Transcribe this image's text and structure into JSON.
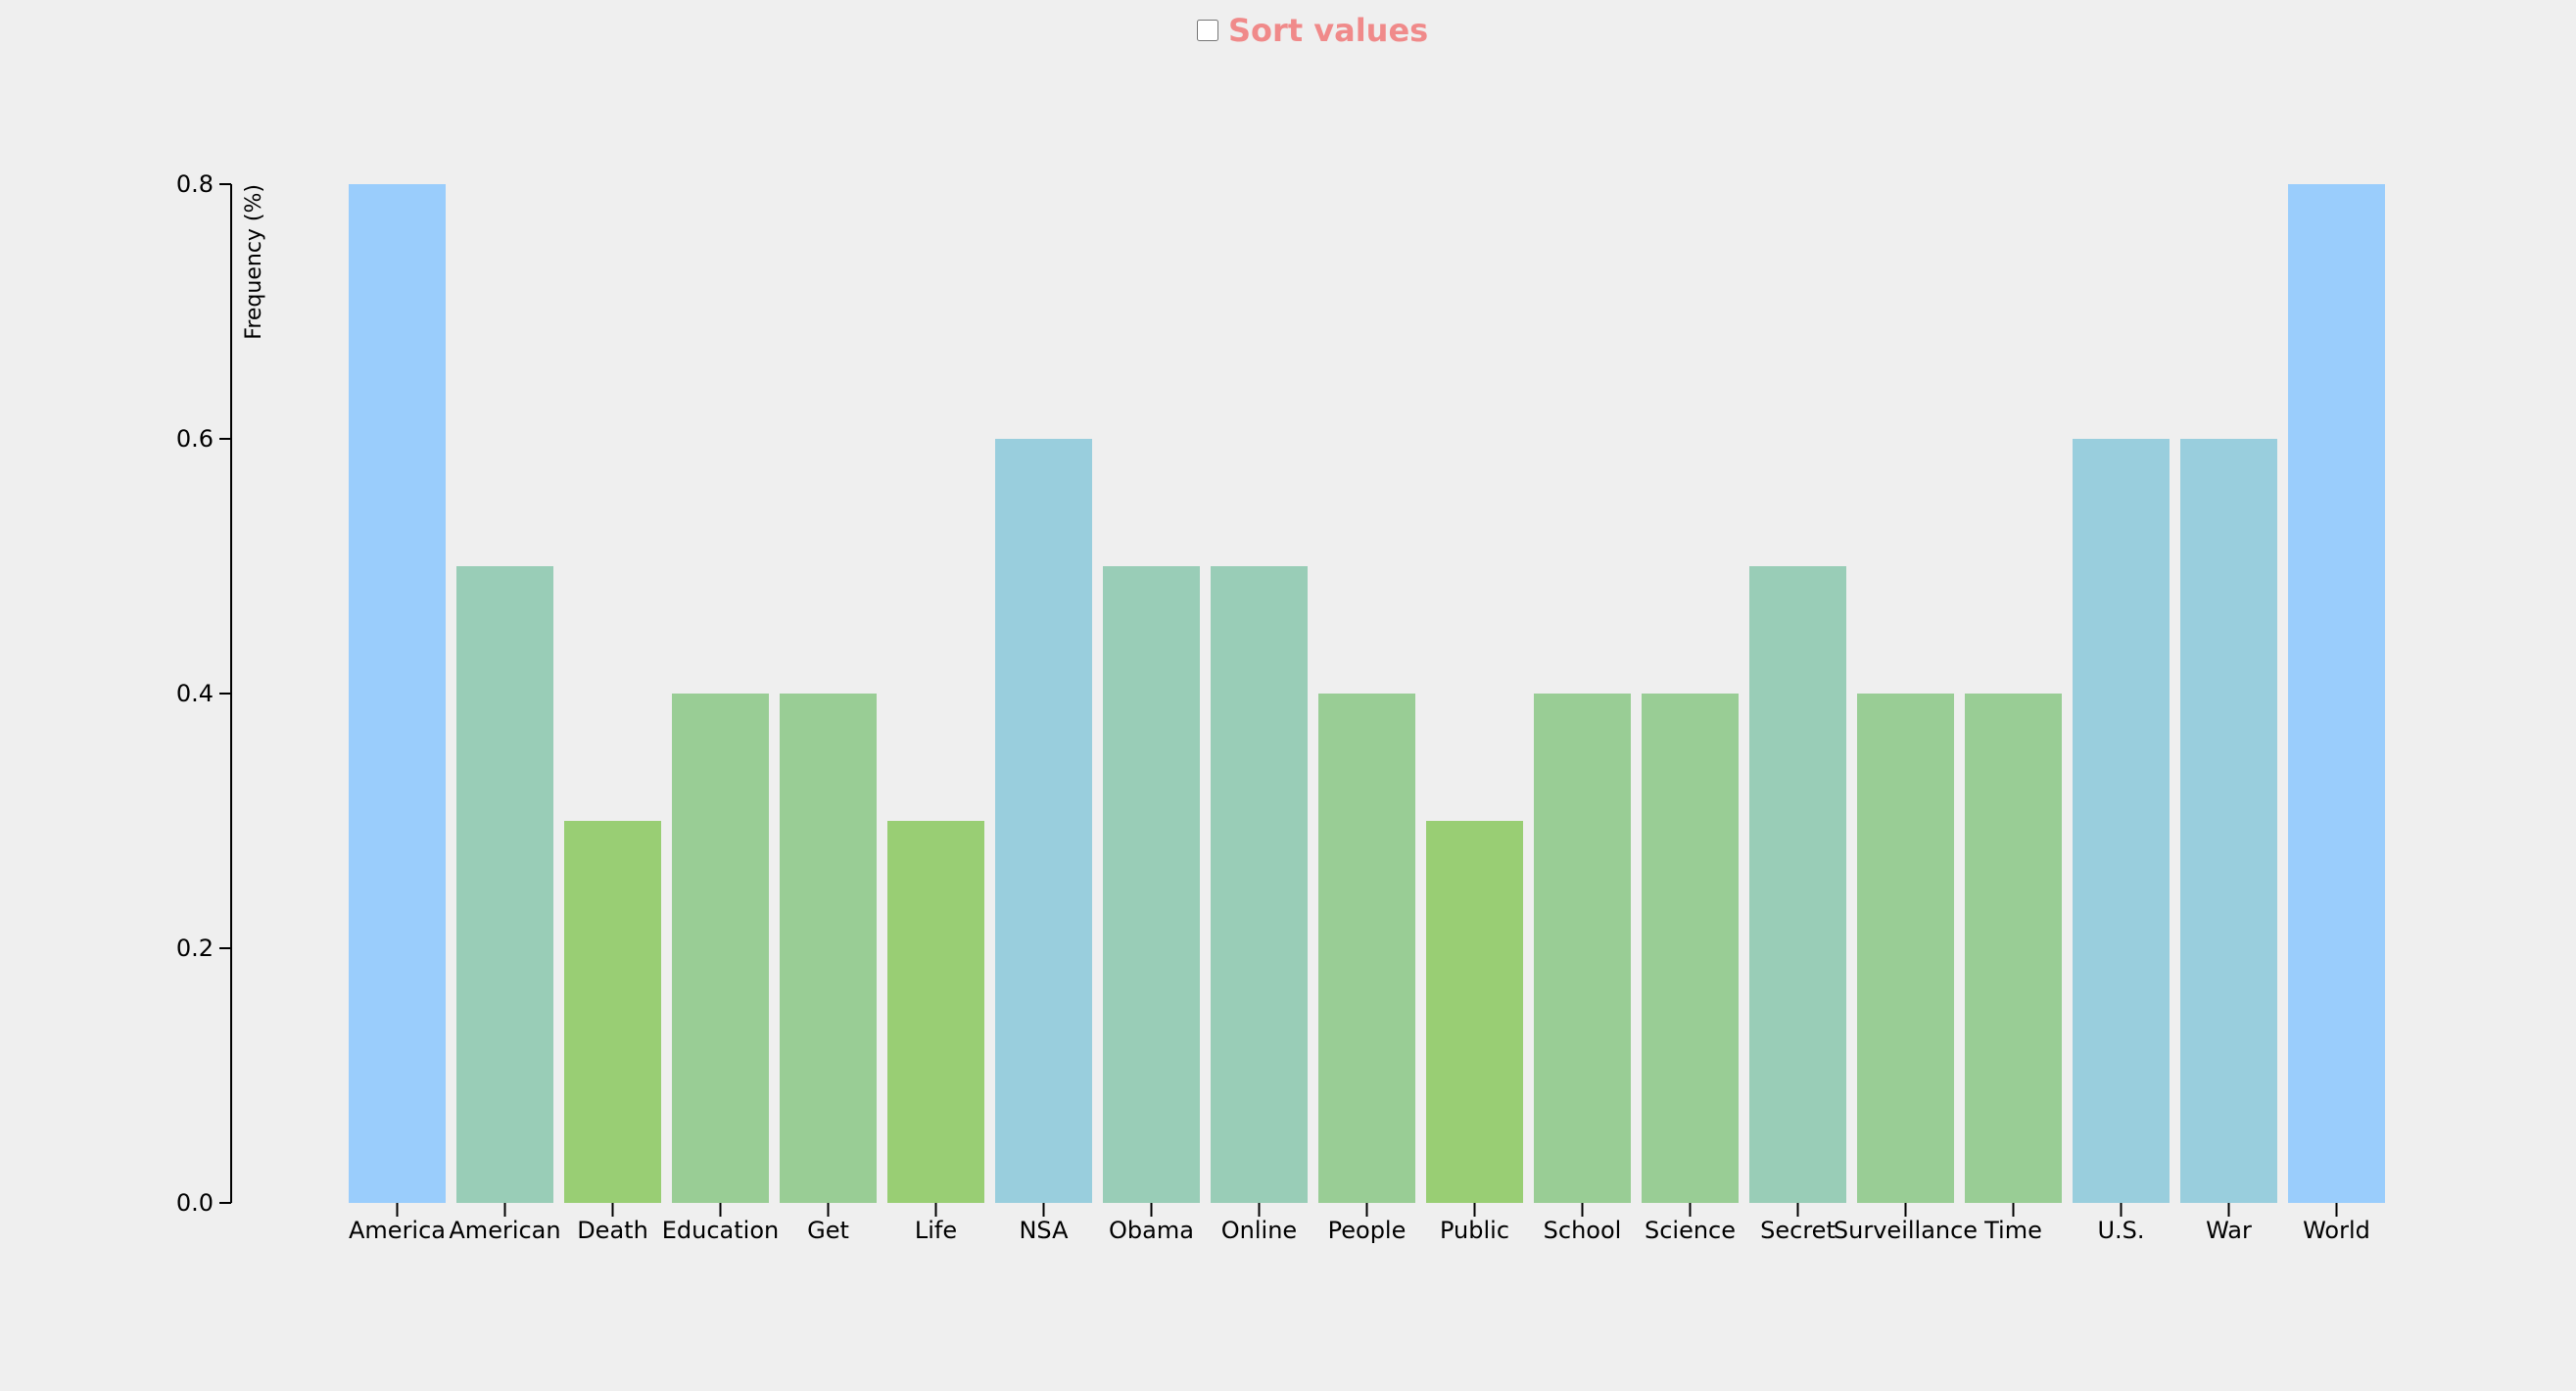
{
  "controls": {
    "sort_label": "Sort values",
    "sort_checked": false
  },
  "chart_data": {
    "type": "bar",
    "ylabel": "Frequency (%)",
    "ylim": [
      0,
      0.8
    ],
    "yticks": [
      "0.0",
      "0.2",
      "0.4",
      "0.6",
      "0.8"
    ],
    "grid": false,
    "categories": [
      "America",
      "American",
      "Death",
      "Education",
      "Get",
      "Life",
      "NSA",
      "Obama",
      "Online",
      "People",
      "Public",
      "School",
      "Science",
      "Secret",
      "Surveillance",
      "Time",
      "U.S.",
      "War",
      "World"
    ],
    "values": [
      0.8,
      0.5,
      0.3,
      0.4,
      0.4,
      0.3,
      0.6,
      0.5,
      0.5,
      0.4,
      0.3,
      0.4,
      0.4,
      0.5,
      0.4,
      0.4,
      0.6,
      0.6,
      0.8
    ],
    "colors": {
      "0.3": "#99ce74",
      "0.4": "#99cd95",
      "0.5": "#99cdb7",
      "0.6": "#99cedd",
      "0.8": "#9acdfc"
    }
  }
}
